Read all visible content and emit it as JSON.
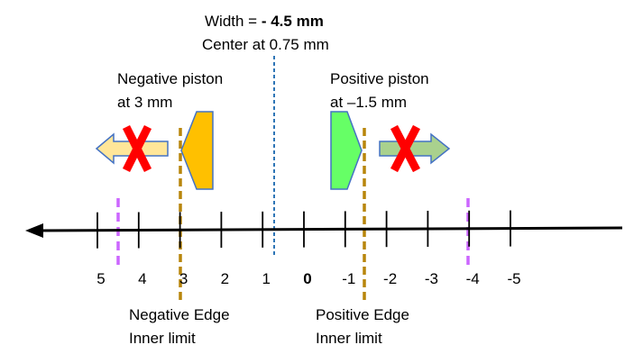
{
  "header": {
    "width_prefix": "Width = ",
    "width_value": "- 4.5 mm",
    "center_line": "Center at 0.75 mm"
  },
  "pistons": {
    "negative": {
      "line1": "Negative piston",
      "line2": "at 3 mm",
      "color": "#FFC000"
    },
    "positive": {
      "line1": "Positive piston",
      "line2": "at –1.5 mm",
      "color": "#66FF66"
    }
  },
  "edges": {
    "negative": {
      "line1": "Negative Edge",
      "line2": "Inner limit"
    },
    "positive": {
      "line1": "Positive Edge",
      "line2": "Inner limit"
    }
  },
  "axis": {
    "ticks": [
      "5",
      "4",
      "3",
      "2",
      "1",
      "0",
      "-1",
      "-2",
      "-3",
      "-4",
      "-5"
    ],
    "bold_tick": "0"
  },
  "colors": {
    "edge_line": "#B8860B",
    "limit_line": "#CC66FF",
    "center_line": "#2E75B6",
    "blocked_x": "#FF0000",
    "left_arrow": "#FFE699",
    "right_arrow": "#A9D18E",
    "outline": "#4472C4"
  },
  "icons": {
    "left_arrow": "arrow-left-icon",
    "right_arrow": "arrow-right-icon",
    "blocked": "x-mark-icon"
  }
}
